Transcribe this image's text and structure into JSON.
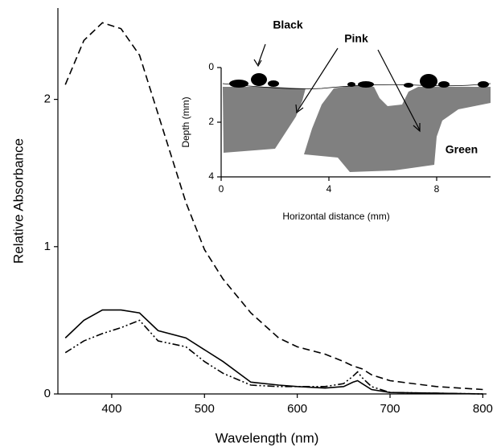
{
  "chart_data": [
    {
      "type": "line",
      "xlabel": "Wavelength (nm)",
      "ylabel": "Relative Absorbance",
      "x": [
        350,
        370,
        390,
        410,
        430,
        450,
        480,
        500,
        520,
        550,
        580,
        600,
        630,
        650,
        660,
        665,
        670,
        680,
        700,
        750,
        800
      ],
      "series": [
        {
          "color": "#000000",
          "style": "dashed",
          "values": [
            2.1,
            2.4,
            2.52,
            2.48,
            2.3,
            1.9,
            1.3,
            0.98,
            0.78,
            0.55,
            0.38,
            0.32,
            0.27,
            0.22,
            0.19,
            0.18,
            0.17,
            0.13,
            0.09,
            0.05,
            0.03
          ]
        },
        {
          "color": "#000000",
          "style": "solid",
          "values": [
            0.38,
            0.5,
            0.57,
            0.57,
            0.55,
            0.43,
            0.38,
            0.3,
            0.22,
            0.08,
            0.06,
            0.05,
            0.04,
            0.05,
            0.08,
            0.09,
            0.07,
            0.03,
            0.01,
            0.005,
            0
          ]
        },
        {
          "color": "#000000",
          "style": "dashdot",
          "values": [
            0.28,
            0.36,
            0.41,
            0.45,
            0.5,
            0.36,
            0.32,
            0.22,
            0.14,
            0.06,
            0.05,
            0.05,
            0.05,
            0.07,
            0.12,
            0.15,
            0.11,
            0.05,
            0.01,
            0.005,
            0
          ]
        }
      ],
      "xlim": [
        342,
        804
      ],
      "ylim": [
        0,
        2.62
      ],
      "xticks": [
        400,
        500,
        600,
        700,
        800
      ],
      "yticks": [
        0,
        1,
        2
      ]
    },
    {
      "type": "cross-section",
      "xlabel": "Horizontal distance (mm)",
      "ylabel": "Depth (mm)",
      "xlim": [
        0,
        10
      ],
      "ylim": [
        4,
        0
      ],
      "xticks": [
        0,
        4,
        8
      ],
      "yticks": [
        0,
        2,
        4
      ],
      "annotations": [
        "Black",
        "Pink",
        "Green"
      ]
    }
  ]
}
